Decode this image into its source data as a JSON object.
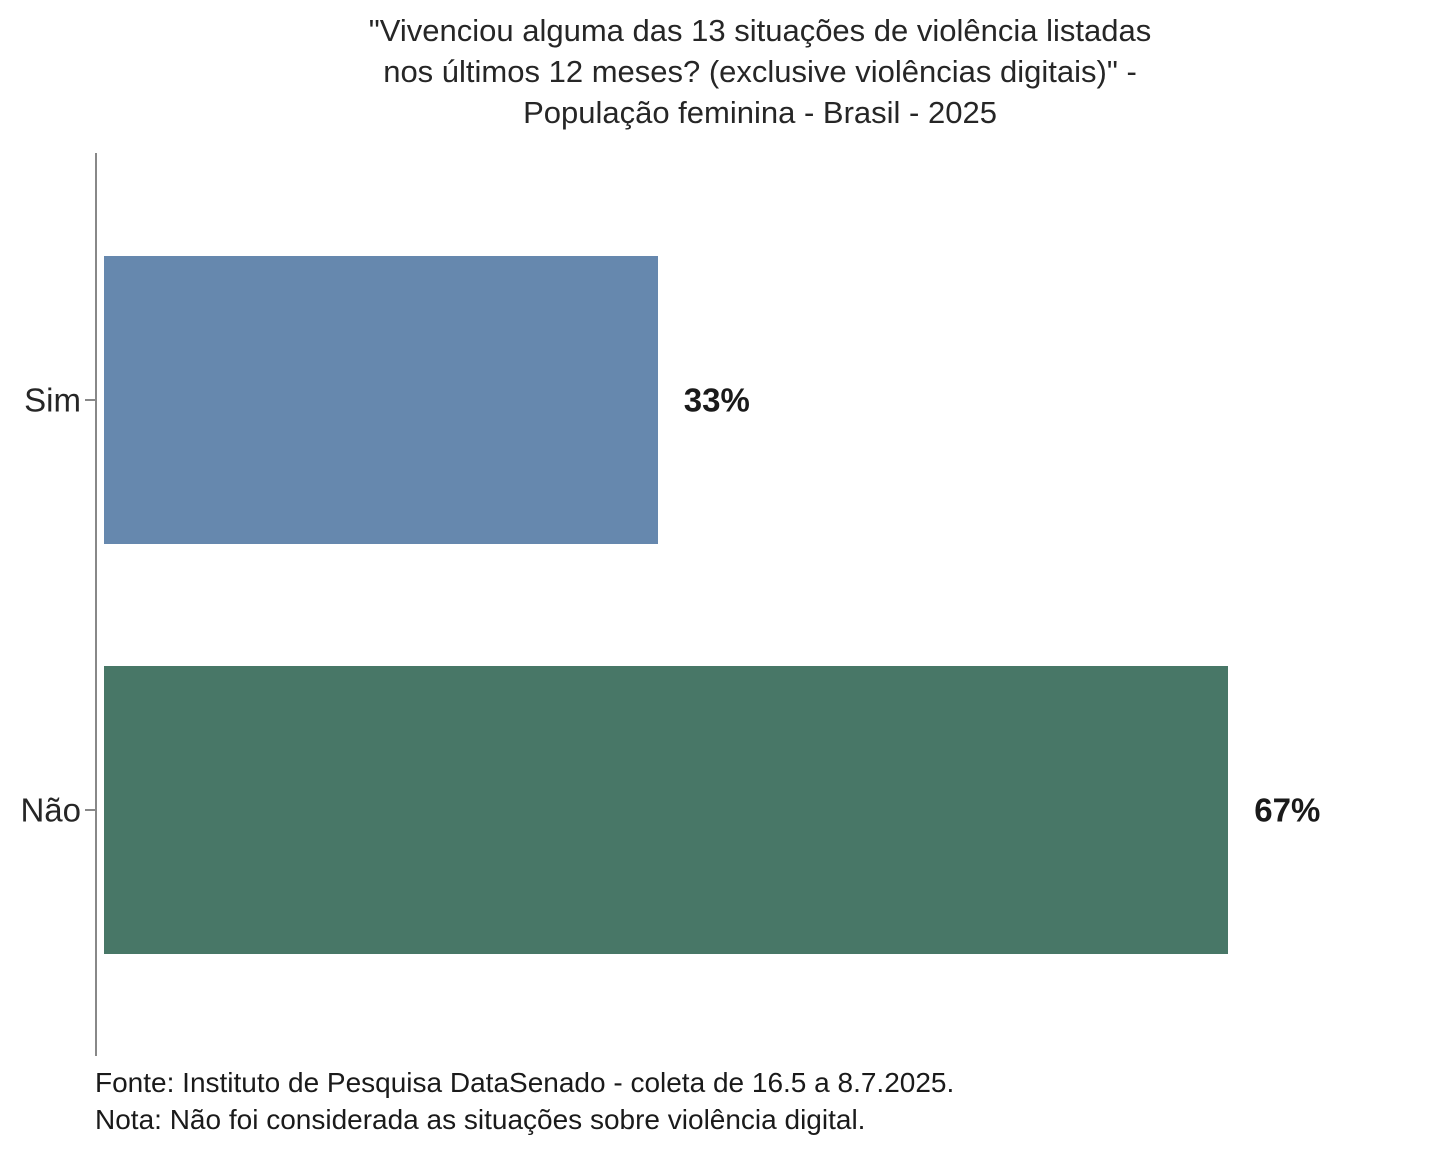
{
  "chart_data": {
    "type": "bar",
    "orientation": "horizontal",
    "title": "\"Vivenciou alguma das 13 situações de violência listadas\nnos últimos 12 meses? (exclusive violências digitais)\" -\nPopulação feminina - Brasil - 2025",
    "categories": [
      "Sim",
      "Não"
    ],
    "values": [
      33,
      67
    ],
    "value_labels": [
      "33%",
      "67%"
    ],
    "bar_colors": [
      "#6688AE",
      "#487767"
    ],
    "axis_color": "#888888",
    "grid": false,
    "legend": false,
    "footer": {
      "source": "Fonte: Instituto de Pesquisa DataSenado - coleta de 16.5 a 8.7.2025.",
      "note": "Nota: Não foi considerada as situações sobre violência digital."
    }
  }
}
